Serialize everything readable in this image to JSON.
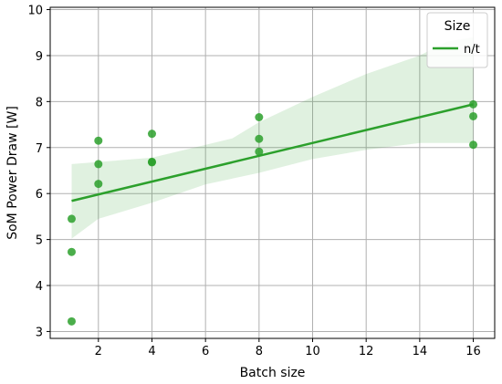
{
  "chart_data": {
    "type": "scatter",
    "xlabel": "Batch size",
    "ylabel": "SoM Power Draw [W]",
    "xlim": [
      0.2,
      16.8
    ],
    "ylim": [
      2.85,
      10.05
    ],
    "xticks": [
      2,
      4,
      6,
      8,
      10,
      12,
      14,
      16
    ],
    "yticks": [
      3,
      4,
      5,
      6,
      7,
      8,
      9,
      10
    ],
    "grid": true,
    "legend": {
      "title": "Size",
      "placement": "top-right",
      "entries": [
        {
          "label": "n/t",
          "color": "#2ca02c"
        }
      ]
    },
    "series": [
      {
        "name": "n/t",
        "color": "#2ca02c",
        "points": [
          {
            "x": 1,
            "y": 3.22
          },
          {
            "x": 1,
            "y": 4.73
          },
          {
            "x": 1,
            "y": 5.45
          },
          {
            "x": 2,
            "y": 6.21
          },
          {
            "x": 2,
            "y": 6.64
          },
          {
            "x": 2,
            "y": 7.15
          },
          {
            "x": 4,
            "y": 6.68
          },
          {
            "x": 4,
            "y": 6.69
          },
          {
            "x": 4,
            "y": 7.3
          },
          {
            "x": 8,
            "y": 6.91
          },
          {
            "x": 8,
            "y": 7.19
          },
          {
            "x": 8,
            "y": 7.66
          },
          {
            "x": 16,
            "y": 7.06
          },
          {
            "x": 16,
            "y": 7.68
          },
          {
            "x": 16,
            "y": 7.94
          }
        ],
        "regression": {
          "line": [
            {
              "x": 1,
              "y": 5.84
            },
            {
              "x": 16,
              "y": 7.94
            }
          ],
          "ci_upper": [
            {
              "x": 1,
              "y": 6.64
            },
            {
              "x": 4,
              "y": 6.78
            },
            {
              "x": 7,
              "y": 7.2
            },
            {
              "x": 8,
              "y": 7.55
            },
            {
              "x": 10,
              "y": 8.1
            },
            {
              "x": 12,
              "y": 8.6
            },
            {
              "x": 14,
              "y": 9.0
            },
            {
              "x": 15,
              "y": 9.3
            },
            {
              "x": 16,
              "y": 9.4
            }
          ],
          "ci_lower": [
            {
              "x": 1,
              "y": 5.02
            },
            {
              "x": 2,
              "y": 5.45
            },
            {
              "x": 4,
              "y": 5.8
            },
            {
              "x": 6,
              "y": 6.2
            },
            {
              "x": 8,
              "y": 6.45
            },
            {
              "x": 10,
              "y": 6.75
            },
            {
              "x": 12,
              "y": 6.95
            },
            {
              "x": 14,
              "y": 7.1
            },
            {
              "x": 16,
              "y": 7.1
            }
          ]
        }
      }
    ]
  }
}
